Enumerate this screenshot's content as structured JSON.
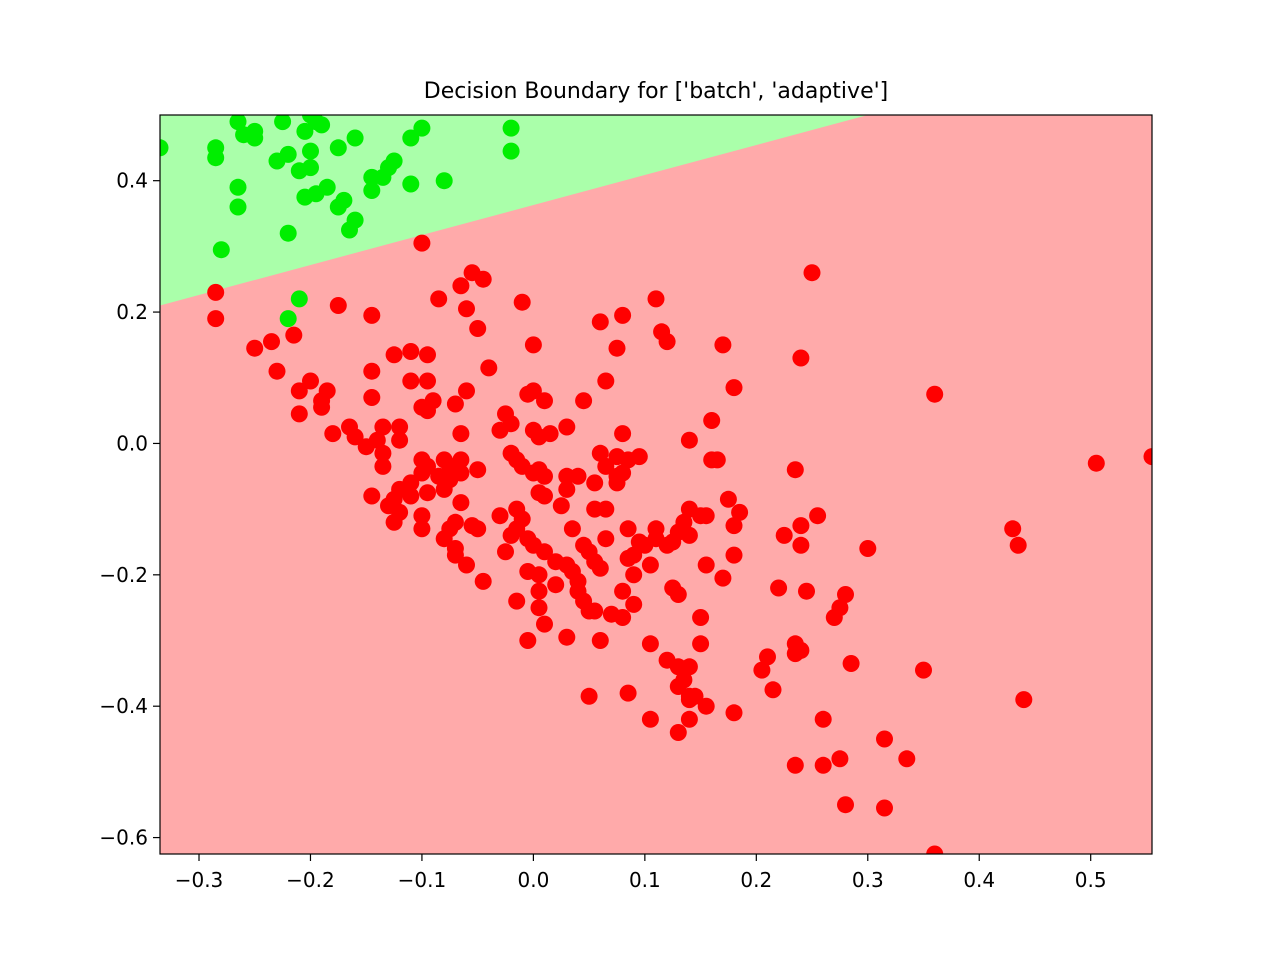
{
  "chart_data": {
    "type": "scatter",
    "title": "Decision Boundary for ['batch', 'adaptive']",
    "xlabel": "",
    "ylabel": "",
    "xlim": [
      -0.335,
      0.555
    ],
    "ylim": [
      -0.625,
      0.5
    ],
    "x_ticks": [
      -0.3,
      -0.2,
      -0.1,
      0.0,
      0.1,
      0.2,
      0.3,
      0.4,
      0.5
    ],
    "x_tick_labels": [
      "−0.3",
      "−0.2",
      "−0.1",
      "0.0",
      "0.1",
      "0.2",
      "0.3",
      "0.4",
      "0.5"
    ],
    "y_ticks": [
      0.4,
      0.2,
      0.0,
      -0.2,
      -0.4,
      -0.6
    ],
    "y_tick_labels": [
      "0.4",
      "0.2",
      "0.0",
      "−0.2",
      "−0.4",
      "−0.6"
    ],
    "grid": false,
    "legend": "none",
    "background_regions": {
      "description": "decision regions",
      "boundary_line": [
        [
          -0.335,
          0.21
        ],
        [
          0.3,
          0.5
        ]
      ],
      "above_color": "#aaffaa",
      "below_color": "#ffaaaa"
    },
    "series": [
      {
        "color": "#00ee00",
        "points": [
          [
            -0.335,
            0.45
          ],
          [
            -0.285,
            0.45
          ],
          [
            -0.285,
            0.435
          ],
          [
            -0.265,
            0.49
          ],
          [
            -0.26,
            0.47
          ],
          [
            -0.25,
            0.475
          ],
          [
            -0.25,
            0.465
          ],
          [
            -0.225,
            0.49
          ],
          [
            -0.2,
            0.5
          ],
          [
            -0.205,
            0.475
          ],
          [
            -0.195,
            0.49
          ],
          [
            -0.19,
            0.485
          ],
          [
            -0.1,
            0.48
          ],
          [
            -0.02,
            0.48
          ],
          [
            -0.16,
            0.465
          ],
          [
            -0.11,
            0.465
          ],
          [
            -0.22,
            0.44
          ],
          [
            -0.23,
            0.43
          ],
          [
            -0.2,
            0.445
          ],
          [
            -0.175,
            0.45
          ],
          [
            -0.21,
            0.415
          ],
          [
            -0.2,
            0.42
          ],
          [
            -0.125,
            0.43
          ],
          [
            -0.13,
            0.42
          ],
          [
            -0.145,
            0.405
          ],
          [
            -0.135,
            0.405
          ],
          [
            -0.195,
            0.38
          ],
          [
            -0.205,
            0.375
          ],
          [
            -0.185,
            0.39
          ],
          [
            -0.145,
            0.385
          ],
          [
            -0.11,
            0.395
          ],
          [
            -0.08,
            0.4
          ],
          [
            -0.02,
            0.445
          ],
          [
            -0.265,
            0.39
          ],
          [
            -0.265,
            0.36
          ],
          [
            -0.175,
            0.36
          ],
          [
            -0.17,
            0.37
          ],
          [
            -0.16,
            0.34
          ],
          [
            -0.165,
            0.325
          ],
          [
            -0.22,
            0.32
          ],
          [
            -0.28,
            0.295
          ],
          [
            -0.21,
            0.22
          ],
          [
            -0.22,
            0.19
          ]
        ]
      },
      {
        "color": "#ff0000",
        "points": [
          [
            -0.1,
            0.305
          ],
          [
            0.25,
            0.26
          ],
          [
            -0.055,
            0.26
          ],
          [
            -0.045,
            0.25
          ],
          [
            -0.065,
            0.24
          ],
          [
            -0.285,
            0.23
          ],
          [
            -0.085,
            0.22
          ],
          [
            0.11,
            0.22
          ],
          [
            -0.175,
            0.21
          ],
          [
            -0.01,
            0.215
          ],
          [
            -0.06,
            0.205
          ],
          [
            -0.285,
            0.19
          ],
          [
            -0.145,
            0.195
          ],
          [
            0.08,
            0.195
          ],
          [
            0.06,
            0.185
          ],
          [
            -0.05,
            0.175
          ],
          [
            0.115,
            0.17
          ],
          [
            0.12,
            0.155
          ],
          [
            -0.215,
            0.165
          ],
          [
            -0.235,
            0.155
          ],
          [
            0.0,
            0.15
          ],
          [
            0.17,
            0.15
          ],
          [
            -0.25,
            0.145
          ],
          [
            0.075,
            0.145
          ],
          [
            -0.11,
            0.14
          ],
          [
            -0.125,
            0.135
          ],
          [
            -0.095,
            0.135
          ],
          [
            0.24,
            0.13
          ],
          [
            -0.04,
            0.115
          ],
          [
            -0.23,
            0.11
          ],
          [
            -0.145,
            0.11
          ],
          [
            -0.2,
            0.095
          ],
          [
            -0.11,
            0.095
          ],
          [
            -0.095,
            0.095
          ],
          [
            0.065,
            0.095
          ],
          [
            -0.21,
            0.08
          ],
          [
            -0.185,
            0.08
          ],
          [
            -0.06,
            0.08
          ],
          [
            0.0,
            0.08
          ],
          [
            0.18,
            0.085
          ],
          [
            -0.005,
            0.075
          ],
          [
            0.36,
            0.075
          ],
          [
            -0.145,
            0.07
          ],
          [
            -0.19,
            0.065
          ],
          [
            -0.09,
            0.065
          ],
          [
            -0.07,
            0.06
          ],
          [
            0.01,
            0.065
          ],
          [
            0.045,
            0.065
          ],
          [
            -0.19,
            0.055
          ],
          [
            -0.1,
            0.055
          ],
          [
            -0.095,
            0.05
          ],
          [
            -0.21,
            0.045
          ],
          [
            -0.025,
            0.045
          ],
          [
            0.16,
            0.035
          ],
          [
            -0.02,
            0.03
          ],
          [
            -0.165,
            0.025
          ],
          [
            -0.135,
            0.025
          ],
          [
            -0.12,
            0.025
          ],
          [
            0.03,
            0.025
          ],
          [
            -0.18,
            0.015
          ],
          [
            -0.03,
            0.02
          ],
          [
            0.0,
            0.02
          ],
          [
            0.08,
            0.015
          ],
          [
            -0.065,
            0.015
          ],
          [
            -0.16,
            0.01
          ],
          [
            -0.14,
            0.005
          ],
          [
            -0.12,
            0.005
          ],
          [
            0.005,
            0.01
          ],
          [
            0.015,
            0.015
          ],
          [
            0.14,
            0.005
          ],
          [
            -0.15,
            -0.005
          ],
          [
            -0.135,
            -0.015
          ],
          [
            -0.1,
            -0.025
          ],
          [
            -0.08,
            -0.025
          ],
          [
            -0.065,
            -0.025
          ],
          [
            -0.02,
            -0.015
          ],
          [
            0.06,
            -0.015
          ],
          [
            0.075,
            -0.02
          ],
          [
            0.085,
            -0.025
          ],
          [
            0.095,
            -0.02
          ],
          [
            0.16,
            -0.025
          ],
          [
            0.165,
            -0.025
          ],
          [
            -0.135,
            -0.035
          ],
          [
            -0.095,
            -0.035
          ],
          [
            -0.075,
            -0.035
          ],
          [
            -0.05,
            -0.04
          ],
          [
            -0.015,
            -0.025
          ],
          [
            -0.01,
            -0.035
          ],
          [
            0.005,
            -0.04
          ],
          [
            0.065,
            -0.035
          ],
          [
            0.235,
            -0.04
          ],
          [
            0.505,
            -0.03
          ],
          [
            0.555,
            -0.02
          ],
          [
            -0.1,
            -0.045
          ],
          [
            -0.085,
            -0.05
          ],
          [
            -0.065,
            -0.045
          ],
          [
            0.0,
            -0.045
          ],
          [
            0.01,
            -0.05
          ],
          [
            0.03,
            -0.05
          ],
          [
            0.04,
            -0.05
          ],
          [
            0.075,
            -0.05
          ],
          [
            0.08,
            -0.045
          ],
          [
            -0.11,
            -0.06
          ],
          [
            -0.075,
            -0.055
          ],
          [
            0.055,
            -0.06
          ],
          [
            0.075,
            -0.06
          ],
          [
            -0.12,
            -0.07
          ],
          [
            -0.08,
            -0.07
          ],
          [
            -0.095,
            -0.075
          ],
          [
            0.03,
            -0.07
          ],
          [
            -0.145,
            -0.08
          ],
          [
            -0.11,
            -0.08
          ],
          [
            -0.125,
            -0.085
          ],
          [
            0.005,
            -0.075
          ],
          [
            0.01,
            -0.08
          ],
          [
            0.175,
            -0.085
          ],
          [
            -0.13,
            -0.095
          ],
          [
            -0.065,
            -0.09
          ],
          [
            0.025,
            -0.095
          ],
          [
            0.185,
            -0.105
          ],
          [
            0.065,
            -0.1
          ],
          [
            0.055,
            -0.1
          ],
          [
            0.14,
            -0.1
          ],
          [
            0.15,
            -0.11
          ],
          [
            0.255,
            -0.11
          ],
          [
            -0.015,
            -0.1
          ],
          [
            -0.03,
            -0.11
          ],
          [
            -0.12,
            -0.105
          ],
          [
            -0.1,
            -0.11
          ],
          [
            -0.01,
            -0.115
          ],
          [
            0.155,
            -0.11
          ],
          [
            -0.07,
            -0.12
          ],
          [
            -0.055,
            -0.125
          ],
          [
            0.135,
            -0.12
          ],
          [
            0.18,
            -0.125
          ],
          [
            0.24,
            -0.125
          ],
          [
            -0.125,
            -0.12
          ],
          [
            -0.075,
            -0.13
          ],
          [
            -0.05,
            -0.13
          ],
          [
            0.035,
            -0.13
          ],
          [
            0.085,
            -0.13
          ],
          [
            0.11,
            -0.13
          ],
          [
            0.13,
            -0.135
          ],
          [
            0.43,
            -0.13
          ],
          [
            -0.1,
            -0.13
          ],
          [
            -0.015,
            -0.13
          ],
          [
            -0.02,
            -0.14
          ],
          [
            0.065,
            -0.145
          ],
          [
            0.11,
            -0.145
          ],
          [
            0.14,
            -0.14
          ],
          [
            0.225,
            -0.14
          ],
          [
            -0.08,
            -0.145
          ],
          [
            -0.005,
            -0.145
          ],
          [
            0.095,
            -0.15
          ],
          [
            0.12,
            -0.155
          ],
          [
            0.125,
            -0.15
          ],
          [
            0.24,
            -0.155
          ],
          [
            0.435,
            -0.155
          ],
          [
            -0.07,
            -0.16
          ],
          [
            0.0,
            -0.155
          ],
          [
            0.045,
            -0.155
          ],
          [
            0.1,
            -0.155
          ],
          [
            0.3,
            -0.16
          ],
          [
            -0.025,
            -0.165
          ],
          [
            0.05,
            -0.165
          ],
          [
            0.18,
            -0.17
          ],
          [
            -0.07,
            -0.17
          ],
          [
            0.01,
            -0.165
          ],
          [
            0.085,
            -0.175
          ],
          [
            0.09,
            -0.17
          ],
          [
            0.02,
            -0.18
          ],
          [
            0.03,
            -0.185
          ],
          [
            0.055,
            -0.18
          ],
          [
            0.155,
            -0.185
          ],
          [
            -0.06,
            -0.185
          ],
          [
            0.06,
            -0.19
          ],
          [
            0.105,
            -0.185
          ],
          [
            -0.005,
            -0.195
          ],
          [
            0.005,
            -0.2
          ],
          [
            0.035,
            -0.195
          ],
          [
            0.09,
            -0.2
          ],
          [
            0.17,
            -0.205
          ],
          [
            -0.045,
            -0.21
          ],
          [
            0.02,
            -0.215
          ],
          [
            0.04,
            -0.21
          ],
          [
            0.22,
            -0.22
          ],
          [
            0.125,
            -0.22
          ],
          [
            0.005,
            -0.225
          ],
          [
            0.04,
            -0.225
          ],
          [
            0.08,
            -0.225
          ],
          [
            0.13,
            -0.23
          ],
          [
            0.245,
            -0.225
          ],
          [
            0.28,
            -0.23
          ],
          [
            -0.015,
            -0.24
          ],
          [
            0.045,
            -0.24
          ],
          [
            0.09,
            -0.245
          ],
          [
            0.275,
            -0.25
          ],
          [
            0.005,
            -0.25
          ],
          [
            0.05,
            -0.255
          ],
          [
            0.055,
            -0.255
          ],
          [
            0.07,
            -0.26
          ],
          [
            0.08,
            -0.265
          ],
          [
            0.15,
            -0.265
          ],
          [
            0.27,
            -0.265
          ],
          [
            0.01,
            -0.275
          ],
          [
            0.03,
            -0.295
          ],
          [
            -0.005,
            -0.3
          ],
          [
            0.06,
            -0.3
          ],
          [
            0.105,
            -0.305
          ],
          [
            0.15,
            -0.305
          ],
          [
            0.235,
            -0.305
          ],
          [
            0.235,
            -0.32
          ],
          [
            0.24,
            -0.315
          ],
          [
            0.21,
            -0.325
          ],
          [
            0.12,
            -0.33
          ],
          [
            0.13,
            -0.34
          ],
          [
            0.14,
            -0.34
          ],
          [
            0.285,
            -0.335
          ],
          [
            0.205,
            -0.345
          ],
          [
            0.35,
            -0.345
          ],
          [
            0.135,
            -0.36
          ],
          [
            0.13,
            -0.37
          ],
          [
            0.215,
            -0.375
          ],
          [
            0.14,
            -0.385
          ],
          [
            0.145,
            -0.385
          ],
          [
            0.05,
            -0.385
          ],
          [
            0.085,
            -0.38
          ],
          [
            0.14,
            -0.39
          ],
          [
            0.155,
            -0.4
          ],
          [
            0.18,
            -0.41
          ],
          [
            0.44,
            -0.39
          ],
          [
            0.105,
            -0.42
          ],
          [
            0.14,
            -0.42
          ],
          [
            0.26,
            -0.42
          ],
          [
            0.13,
            -0.44
          ],
          [
            0.315,
            -0.45
          ],
          [
            0.335,
            -0.48
          ],
          [
            0.235,
            -0.49
          ],
          [
            0.26,
            -0.49
          ],
          [
            0.275,
            -0.48
          ],
          [
            0.28,
            -0.55
          ],
          [
            0.315,
            -0.555
          ],
          [
            0.36,
            -0.625
          ]
        ]
      }
    ]
  }
}
